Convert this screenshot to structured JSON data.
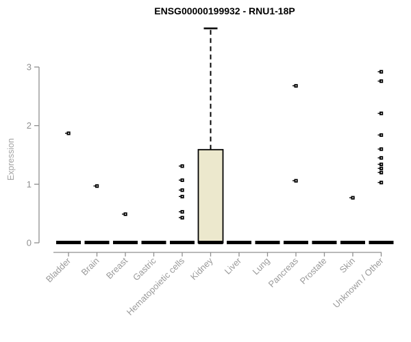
{
  "chart_data": {
    "type": "boxplot",
    "title": "ENSG00000199932 - RNU1-18P",
    "ylabel": "Expression",
    "xlabel": "",
    "yticks": [
      0,
      1,
      2,
      3
    ],
    "ylim": [
      0,
      3.72
    ],
    "grid": false,
    "legend": "none",
    "categories": [
      "Bladder",
      "Brain",
      "Breast",
      "Gastric",
      "Hematopoietic cells",
      "Kidney",
      "Liver",
      "Lung",
      "Pancreas",
      "Prostate",
      "Skin",
      "Unknown / Other"
    ],
    "boxes": [
      {
        "category": "Bladder",
        "median": 0,
        "q1": 0,
        "q3": 0,
        "whisker_low": 0,
        "whisker_high": 0,
        "outliers": [
          1.87
        ]
      },
      {
        "category": "Brain",
        "median": 0,
        "q1": 0,
        "q3": 0,
        "whisker_low": 0,
        "whisker_high": 0,
        "outliers": [
          0.97
        ]
      },
      {
        "category": "Breast",
        "median": 0,
        "q1": 0,
        "q3": 0,
        "whisker_low": 0,
        "whisker_high": 0,
        "outliers": [
          0.49
        ]
      },
      {
        "category": "Gastric",
        "median": 0,
        "q1": 0,
        "q3": 0,
        "whisker_low": 0,
        "whisker_high": 0,
        "outliers": []
      },
      {
        "category": "Hematopoietic cells",
        "median": 0,
        "q1": 0,
        "q3": 0,
        "whisker_low": 0,
        "whisker_high": 0,
        "outliers": [
          1.31,
          1.07,
          0.9,
          0.79,
          0.53,
          0.43
        ]
      },
      {
        "category": "Kidney",
        "median": 0,
        "q1": 0,
        "q3": 1.59,
        "whisker_low": 0,
        "whisker_high": 3.66,
        "outliers": []
      },
      {
        "category": "Liver",
        "median": 0,
        "q1": 0,
        "q3": 0,
        "whisker_low": 0,
        "whisker_high": 0,
        "outliers": []
      },
      {
        "category": "Lung",
        "median": 0,
        "q1": 0,
        "q3": 0,
        "whisker_low": 0,
        "whisker_high": 0,
        "outliers": []
      },
      {
        "category": "Pancreas",
        "median": 0,
        "q1": 0,
        "q3": 0,
        "whisker_low": 0,
        "whisker_high": 0,
        "outliers": [
          2.68,
          1.06
        ]
      },
      {
        "category": "Prostate",
        "median": 0,
        "q1": 0,
        "q3": 0,
        "whisker_low": 0,
        "whisker_high": 0,
        "outliers": []
      },
      {
        "category": "Skin",
        "median": 0,
        "q1": 0,
        "q3": 0,
        "whisker_low": 0,
        "whisker_high": 0,
        "outliers": [
          0.77
        ]
      },
      {
        "category": "Unknown / Other",
        "median": 0,
        "q1": 0,
        "q3": 0,
        "whisker_low": 0,
        "whisker_high": 0,
        "outliers": [
          2.92,
          2.76,
          2.21,
          1.84,
          1.6,
          1.45,
          1.34,
          1.27,
          1.2,
          1.03
        ]
      }
    ],
    "colors": {
      "box_fill": "#ece8cd",
      "box_stroke": "#000000",
      "median": "#000000",
      "whisker": "#000000",
      "outlier": "#000000",
      "axis_line": "#8f8f8f",
      "tick_label": "#8f8f8f",
      "category_label": "#9a9a9a",
      "axis_title": "#a3a3a3",
      "title": "#000000",
      "background": "#ffffff"
    }
  }
}
